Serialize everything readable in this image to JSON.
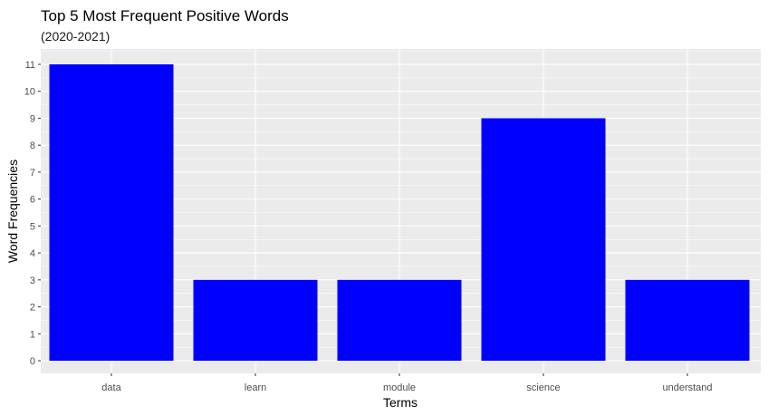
{
  "chart_data": {
    "type": "bar",
    "title": "Top 5 Most Frequent Positive Words",
    "subtitle": "(2020-2021)",
    "xlabel": "Terms",
    "ylabel": "Word Frequencies",
    "categories": [
      "data",
      "learn",
      "module",
      "science",
      "understand"
    ],
    "values": [
      11,
      3,
      3,
      9,
      3
    ],
    "ylim": [
      0,
      11
    ],
    "yticks": [
      0,
      1,
      2,
      3,
      4,
      5,
      6,
      7,
      8,
      9,
      10,
      11
    ],
    "grid": true,
    "legend": "none",
    "colors": {
      "bar": "#0000ff",
      "panel_background": "#ebebeb",
      "grid": "#ffffff"
    }
  }
}
